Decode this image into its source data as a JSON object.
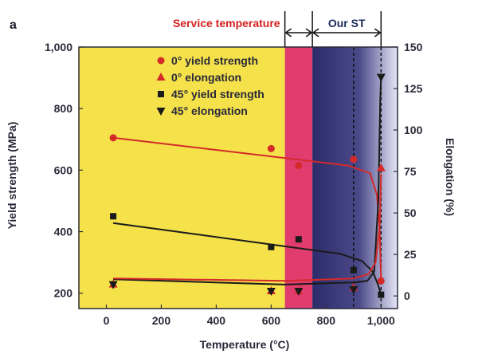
{
  "chart_data": {
    "type": "scatter",
    "panel_label": "a",
    "xlabel": "Temperature (°C)",
    "ylabel_left": "Yield strength (MPa)",
    "ylabel_right": "Elongation (%)",
    "xlim": [
      -100,
      1060
    ],
    "ylim_left": [
      150,
      1000
    ],
    "ylim_right": [
      -7.6,
      150
    ],
    "x_ticks": [
      0,
      200,
      400,
      600,
      800,
      1000
    ],
    "x_tick_labels": [
      "0",
      "200",
      "400",
      "600",
      "800",
      "1,000"
    ],
    "y_left_ticks": [
      200,
      400,
      600,
      800,
      1000
    ],
    "y_left_tick_labels": [
      "200",
      "400",
      "600",
      "800",
      "1,000"
    ],
    "y_right_ticks": [
      0,
      25,
      50,
      75,
      100,
      125,
      150
    ],
    "y_right_tick_labels": [
      "0",
      "25",
      "50",
      "75",
      "100",
      "125",
      "150"
    ],
    "regions": [
      {
        "from": -100,
        "to": 650,
        "color": "#f5e14a"
      },
      {
        "from": 650,
        "to": 750,
        "color": "#e03c6e"
      },
      {
        "from": 750,
        "to": 1060,
        "color": "#2c2c6a",
        "gradient_to": "#e4e4f4"
      }
    ],
    "dashed_lines_x": [
      900,
      1000
    ],
    "top_annotations": {
      "service": {
        "text": "Service temperature",
        "color": "#d42020",
        "from": 650,
        "to": 750
      },
      "our_st": {
        "text": "Our ST",
        "color": "#1a2a5a",
        "from": 750,
        "to": 1000
      }
    },
    "series": [
      {
        "name": "0° yield strength",
        "axis": "left",
        "marker": "circle",
        "color": "#d42a2a",
        "points": [
          [
            25,
            705
          ],
          [
            600,
            670
          ],
          [
            700,
            615
          ],
          [
            900,
            635
          ],
          [
            1000,
            240
          ]
        ]
      },
      {
        "name": "0° elongation",
        "axis": "right",
        "marker": "triangle-up",
        "color": "#d42a2a",
        "points": [
          [
            25,
            7
          ],
          [
            600,
            3
          ],
          [
            700,
            3
          ],
          [
            900,
            5
          ],
          [
            1000,
            77
          ]
        ]
      },
      {
        "name": "45° yield strength",
        "axis": "left",
        "marker": "square",
        "color": "#1a1a1a",
        "points": [
          [
            25,
            450
          ],
          [
            600,
            350
          ],
          [
            700,
            375
          ],
          [
            900,
            275
          ],
          [
            1000,
            195
          ]
        ]
      },
      {
        "name": "45° elongation",
        "axis": "right",
        "marker": "triangle-down",
        "color": "#1a1a1a",
        "points": [
          [
            25,
            7
          ],
          [
            600,
            3
          ],
          [
            700,
            3
          ],
          [
            900,
            4
          ],
          [
            1000,
            132
          ]
        ]
      }
    ]
  }
}
